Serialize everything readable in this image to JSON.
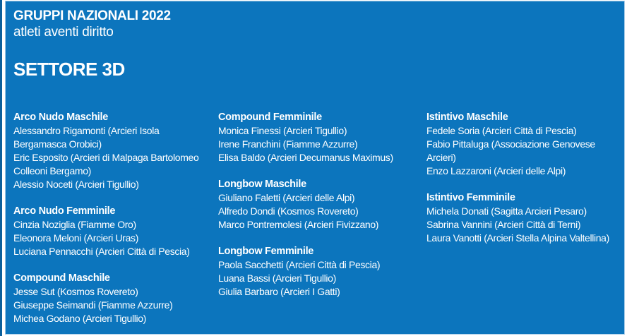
{
  "page": {
    "panel_color": "#0c75bd",
    "left_strip_color": "#0b5f9b",
    "border_color": "#a6cce8",
    "text_color": "#ffffff"
  },
  "header": {
    "title": "GRUPPI NAZIONALI 2022",
    "subtitle": "atleti aventi diritto",
    "section_title": "SETTORE 3D"
  },
  "columns": [
    {
      "sections": [
        {
          "title": "Arco Nudo Maschile",
          "athletes": [
            "Alessandro Rigamonti (Arcieri Isola Bergamasca Orobici)",
            "Eric Esposito (Arcieri di Malpaga Bartolomeo Colleoni Bergamo)",
            "Alessio Noceti (Arcieri Tigullio)"
          ]
        },
        {
          "title": "Arco Nudo Femminile",
          "athletes": [
            "Cinzia Noziglia (Fiamme Oro)",
            "Eleonora Meloni (Arcieri Uras)",
            "Luciana Pennacchi (Arcieri Città di Pescia)"
          ]
        },
        {
          "title": "Compound Maschile",
          "athletes": [
            "Jesse Sut (Kosmos Rovereto)",
            "Giuseppe Seimandi (Fiamme Azzurre)",
            "Michea Godano (Arcieri Tigullio)"
          ]
        }
      ]
    },
    {
      "sections": [
        {
          "title": "Compound Femminile",
          "athletes": [
            "Monica Finessi (Arcieri Tigullio)",
            "Irene Franchini (Fiamme Azzurre)",
            "Elisa Baldo (Arcieri Decumanus Maximus)"
          ]
        },
        {
          "title": "Longbow Maschile",
          "athletes": [
            "Giuliano Faletti (Arcieri delle Alpi)",
            "Alfredo Dondi (Kosmos Rovereto)",
            "Marco Pontremolesi (Arcieri Fivizzano)"
          ]
        },
        {
          "title": "Longbow Femminile",
          "athletes": [
            "Paola Sacchetti (Arcieri Città di Pescia)",
            "Luana Bassi (Arcieri Tigullio)",
            "Giulia Barbaro (Arcieri I Gatti)"
          ]
        }
      ]
    },
    {
      "sections": [
        {
          "title": "Istintivo Maschile",
          "athletes": [
            "Fedele Soria (Arcieri Città di Pescia)",
            "Fabio Pittaluga (Associazione Genovese Arcieri)",
            "Enzo Lazzaroni (Arcieri delle Alpi)"
          ]
        },
        {
          "title": "Istintivo Femminile",
          "athletes": [
            "Michela Donati (Sagitta Arcieri Pesaro)",
            "Sabrina Vannini (Arcieri Città di Terni)",
            "Laura Vanotti (Arcieri Stella Alpina Valtellina)"
          ]
        }
      ]
    }
  ]
}
